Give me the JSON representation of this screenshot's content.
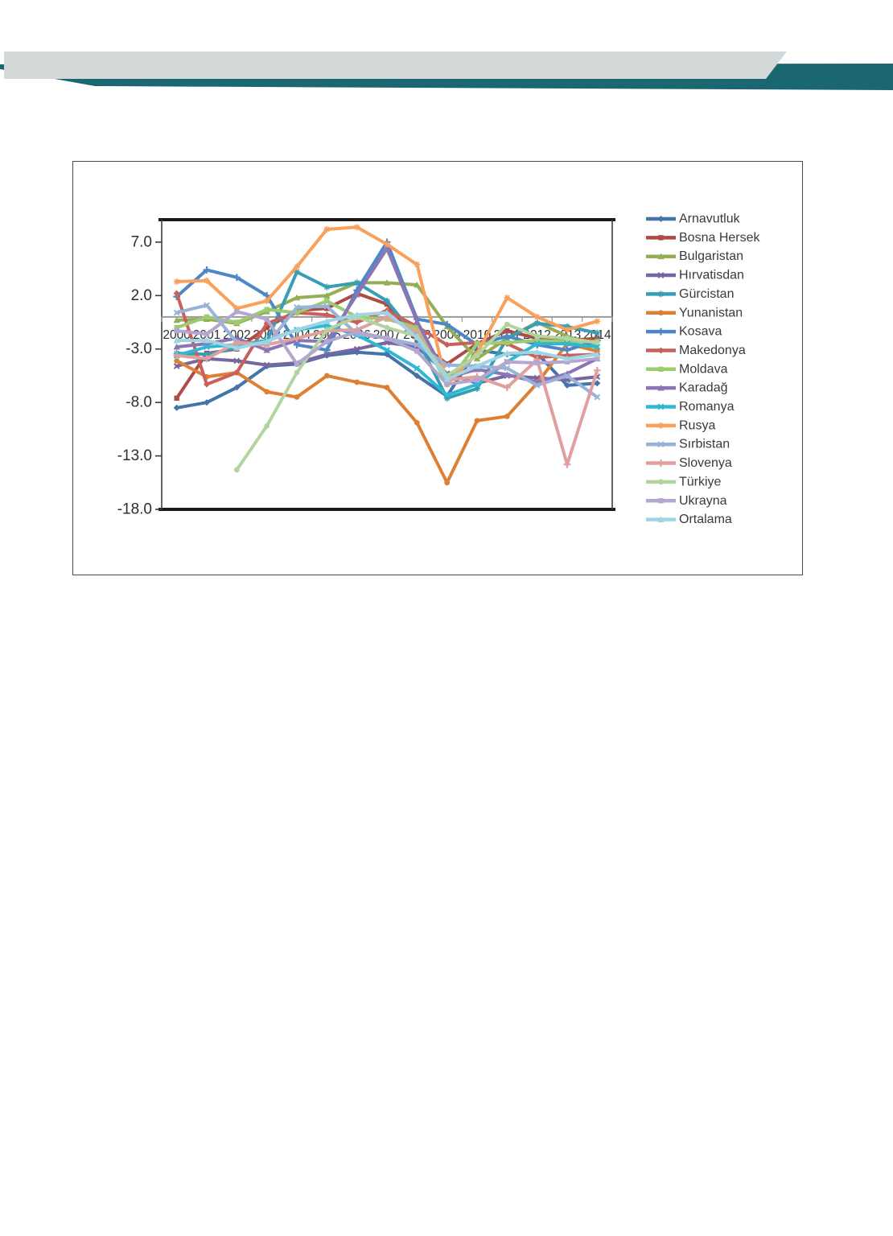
{
  "header": {
    "gray_band_color": "#d3d9d9",
    "teal_band_color": "#1a6772"
  },
  "figure": {
    "background": "#ffffff",
    "border_color": "#4a4a4a"
  },
  "chart_data": {
    "type": "line",
    "title": "",
    "xlabel": "",
    "ylabel": "",
    "categories": [
      "2000",
      "2001",
      "2002",
      "2003",
      "2004",
      "2005",
      "2006",
      "2007",
      "2008",
      "2009",
      "2010",
      "2011",
      "2012",
      "2013",
      "2014"
    ],
    "y_tick_labels": [
      "7.0",
      "2.0",
      "-3.0",
      "-8.0",
      "-13.0",
      "-18.0"
    ],
    "y_tick_values": [
      7,
      2,
      -3,
      -8,
      -13,
      -18
    ],
    "ylim": [
      -18,
      9.1
    ],
    "grid": false,
    "zero_line": true,
    "zero_line_color": "#9a9a9a",
    "axis_border_color": "#1a1a1a",
    "tick_color": "#3a3a3a",
    "label_color": "#2e2e2e",
    "legend_position": "right",
    "legend_text_color": "#3a3a3a",
    "series": [
      {
        "name": "Arnavutluk",
        "color": "#4474A8",
        "marker": "diamond",
        "values": [
          -8.5,
          -8.0,
          -6.6,
          -4.6,
          -4.4,
          -3.6,
          -3.3,
          -3.5,
          -5.5,
          -7.4,
          -3.1,
          -3.5,
          -3.4,
          -6.4,
          -6.2
        ]
      },
      {
        "name": "Bosna Hersek",
        "color": "#AF4B45",
        "marker": "square",
        "values": [
          -7.6,
          -3.4,
          -3.0,
          -1.0,
          0.6,
          0.8,
          2.2,
          1.2,
          -2.2,
          -4.4,
          -2.5,
          -1.3,
          -2.0,
          -2.2,
          -2.0
        ]
      },
      {
        "name": "Bulgaristan",
        "color": "#94AE54",
        "marker": "triangle",
        "values": [
          -0.3,
          -0.2,
          -0.6,
          0.5,
          1.8,
          2.0,
          3.2,
          3.2,
          3.0,
          -0.9,
          -3.9,
          -2.0,
          -0.5,
          -1.8,
          -2.8
        ]
      },
      {
        "name": "Hırvatisdan",
        "color": "#77669F",
        "marker": "x",
        "values": [
          -4.6,
          -3.9,
          -4.1,
          -4.5,
          -4.3,
          -3.5,
          -3.0,
          -2.4,
          -2.8,
          -5.3,
          -6.2,
          -5.5,
          -5.7,
          -5.9,
          -5.6
        ]
      },
      {
        "name": "Gürcistan",
        "color": "#369FB5",
        "marker": "asterisk",
        "values": [
          -3.4,
          -3.5,
          -2.9,
          -2.3,
          4.2,
          2.8,
          3.2,
          1.5,
          -2.0,
          -7.6,
          -6.7,
          -2.0,
          -0.6,
          -0.9,
          -1.5
        ]
      },
      {
        "name": "Yunanistan",
        "color": "#DD8033",
        "marker": "circle",
        "values": [
          -4.1,
          -5.6,
          -5.2,
          -7.0,
          -7.5,
          -5.5,
          -6.1,
          -6.6,
          -9.9,
          -15.5,
          -9.7,
          -9.3,
          -6.2,
          -2.5,
          -3.2
        ]
      },
      {
        "name": "Kosava",
        "color": "#4E87C5",
        "marker": "plus",
        "values": [
          1.9,
          4.4,
          3.7,
          2.0,
          -2.6,
          -3.1,
          2.5,
          7.0,
          -0.2,
          -0.7,
          -2.6,
          -1.8,
          -2.6,
          -3.1,
          -2.2
        ]
      },
      {
        "name": "Makedonya",
        "color": "#C9605C",
        "marker": "diamond",
        "values": [
          2.2,
          -6.3,
          -5.2,
          -0.6,
          0.4,
          0.2,
          -0.5,
          0.6,
          -0.9,
          -2.6,
          -2.4,
          -2.5,
          -3.8,
          -3.6,
          -3.5
        ]
      },
      {
        "name": "Moldava",
        "color": "#9DCB70",
        "marker": "square",
        "values": [
          -1.0,
          0.0,
          -0.5,
          0.7,
          0.4,
          1.5,
          0.0,
          -0.2,
          -1.0,
          -6.3,
          -2.5,
          -2.4,
          -2.2,
          -2.3,
          -2.3
        ]
      },
      {
        "name": "Karadağ",
        "color": "#8C74B5",
        "marker": "triangle",
        "values": [
          -2.8,
          -2.5,
          -2.0,
          -3.1,
          -2.2,
          -2.3,
          2.1,
          6.4,
          -0.4,
          -5.7,
          -4.9,
          -5.4,
          -6.1,
          -5.3,
          -3.9
        ]
      },
      {
        "name": "Romanya",
        "color": "#2FB8D4",
        "marker": "x",
        "values": [
          -3.6,
          -2.8,
          -2.6,
          -2.2,
          -1.2,
          -0.8,
          -1.7,
          -3.1,
          -4.8,
          -7.3,
          -6.3,
          -4.2,
          -2.5,
          -2.5,
          -2.8
        ]
      },
      {
        "name": "Rusya",
        "color": "#F9A05A",
        "marker": "asterisk",
        "values": [
          3.3,
          3.4,
          0.8,
          1.5,
          4.7,
          8.2,
          8.4,
          6.8,
          4.9,
          -6.3,
          -3.4,
          1.8,
          0.0,
          -1.2,
          -0.4
        ]
      },
      {
        "name": "Sırbistan",
        "color": "#98B3D9",
        "marker": "x",
        "values": [
          0.4,
          1.1,
          -2.4,
          -2.6,
          0.9,
          1.0,
          -1.6,
          -2.0,
          -2.6,
          -4.5,
          -4.6,
          -4.8,
          -6.4,
          -5.5,
          -7.5
        ]
      },
      {
        "name": "Slovenya",
        "color": "#DFA09E",
        "marker": "plus",
        "values": [
          -3.6,
          -3.9,
          -2.4,
          -2.6,
          -2.0,
          -1.3,
          -1.2,
          0.0,
          -1.4,
          -5.9,
          -5.6,
          -6.6,
          -4.0,
          -13.8,
          -5.0
        ]
      },
      {
        "name": "Türkiye",
        "color": "#B2D5A0",
        "marker": "circle",
        "values": [
          null,
          null,
          -14.3,
          -10.2,
          -5.2,
          -1.2,
          0.0,
          -1.0,
          -1.8,
          -5.5,
          -3.6,
          -0.7,
          -1.8,
          -2.0,
          -2.4
        ]
      },
      {
        "name": "Ukrayna",
        "color": "#B4A6CE",
        "marker": "square",
        "values": [
          -1.3,
          -1.6,
          0.5,
          -0.2,
          -4.4,
          -2.3,
          -1.4,
          -2.0,
          -3.2,
          -6.3,
          -5.9,
          -4.2,
          -4.3,
          -4.2,
          -3.9
        ]
      },
      {
        "name": "Ortalama",
        "color": "#9FD4E4",
        "marker": "triangle",
        "values": [
          -2.2,
          -2.2,
          -2.9,
          -2.3,
          -1.2,
          -0.4,
          0.2,
          0.4,
          -1.9,
          -5.8,
          -4.6,
          -3.4,
          -3.3,
          -3.9,
          -3.5
        ]
      }
    ]
  }
}
